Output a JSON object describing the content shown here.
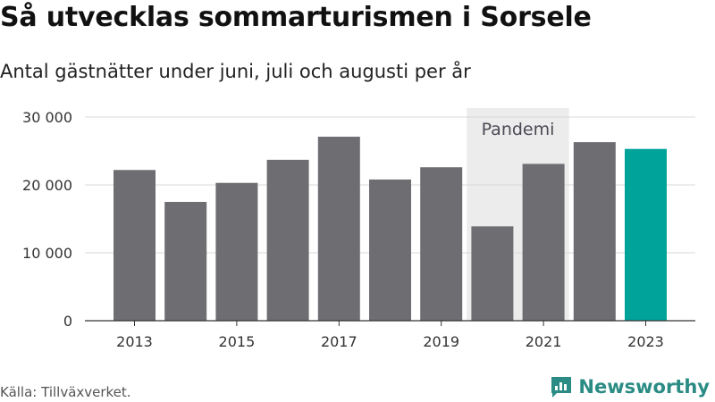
{
  "header": {
    "title": "Så utvecklas sommarturismen i Sorsele",
    "subtitle": "Antal gästnätter under juni, juli och augusti per år"
  },
  "footer": {
    "source": "Källa: Tillväxverket.",
    "brand": "Newsworthy"
  },
  "colors": {
    "bar": "#6e6d72",
    "highlight": "#00a39a",
    "band": "#ececec",
    "brand": "#2a8c84"
  },
  "chart_data": {
    "type": "bar",
    "categories": [
      "2013",
      "2014",
      "2015",
      "2016",
      "2017",
      "2018",
      "2019",
      "2020",
      "2021",
      "2022",
      "2023"
    ],
    "values": [
      22200,
      17500,
      20300,
      23700,
      27100,
      20800,
      22600,
      13900,
      23100,
      26300,
      25300
    ],
    "highlight_category": "2023",
    "xtick_labels": [
      "2013",
      "2015",
      "2017",
      "2019",
      "2021",
      "2023"
    ],
    "yticks": [
      0,
      10000,
      20000,
      30000
    ],
    "ytick_labels": [
      "0",
      "10 000",
      "20 000",
      "30 000"
    ],
    "ylim": [
      0,
      30000
    ],
    "grid": true,
    "annotation": {
      "label": "Pandemi",
      "range": [
        "2020",
        "2021"
      ]
    }
  }
}
